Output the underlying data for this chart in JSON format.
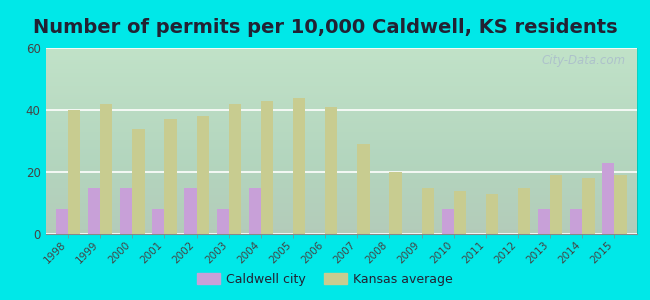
{
  "title": "Number of permits per 10,000 Caldwell, KS residents",
  "years": [
    1998,
    1999,
    2000,
    2001,
    2002,
    2003,
    2004,
    2005,
    2006,
    2007,
    2008,
    2009,
    2010,
    2011,
    2012,
    2013,
    2014,
    2015
  ],
  "caldwell_city": [
    8,
    15,
    15,
    8,
    15,
    8,
    15,
    0,
    0,
    0,
    0,
    0,
    8,
    0,
    0,
    8,
    8,
    23
  ],
  "kansas_avg": [
    40,
    42,
    34,
    37,
    38,
    42,
    43,
    44,
    41,
    29,
    20,
    15,
    14,
    13,
    15,
    19,
    18,
    19
  ],
  "city_color": "#c8a0d8",
  "ks_color": "#c8cc90",
  "outer_bg": "#00e8e8",
  "ylim": [
    0,
    60
  ],
  "yticks": [
    0,
    20,
    40,
    60
  ],
  "bar_width": 0.38,
  "legend_city": "Caldwell city",
  "legend_ks": "Kansas average",
  "watermark": "City-Data.com",
  "title_fontsize": 14,
  "title_color": "#222233"
}
